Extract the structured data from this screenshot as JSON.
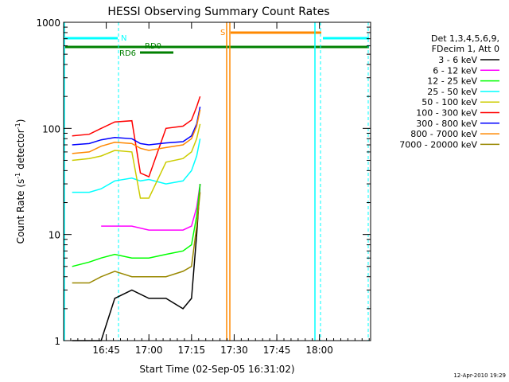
{
  "chart_data": {
    "type": "line",
    "title": "HESSI Observing Summary Count Rates",
    "xlabel": "Start Time (02-Sep-05 16:31:02)",
    "ylabel_main": "Count Rate (s",
    "ylabel_sup1": "-1",
    "ylabel_mid": " detector",
    "ylabel_sup2": "-1",
    "ylabel_end": ")",
    "yscale": "log",
    "ylim": [
      1,
      1000
    ],
    "xlim_minutes": [
      16.5,
      18.3
    ],
    "x_ticks": [
      {
        "label": "16:45",
        "value": 16.75
      },
      {
        "label": "17:00",
        "value": 17.0
      },
      {
        "label": "17:15",
        "value": 17.25
      },
      {
        "label": "17:30",
        "value": 17.5
      },
      {
        "label": "17:45",
        "value": 17.75
      },
      {
        "label": "18:00",
        "value": 18.0
      }
    ],
    "y_ticks": [
      {
        "label": "1",
        "value": 1
      },
      {
        "label": "10",
        "value": 10
      },
      {
        "label": "100",
        "value": 100
      },
      {
        "label": "1000",
        "value": 1000
      }
    ],
    "legend": {
      "placement": "right",
      "header": [
        "Det 1,3,4,5,6,9,",
        "FDecim 1, Att 0"
      ],
      "entries": [
        {
          "label": "3 - 6 keV",
          "color": "#000000"
        },
        {
          "label": "6 - 12 keV",
          "color": "#ff00ff"
        },
        {
          "label": "12 - 25 keV",
          "color": "#00ff00"
        },
        {
          "label": "25 - 50 keV",
          "color": "#00ffff"
        },
        {
          "label": "50 - 100 keV",
          "color": "#cccc00"
        },
        {
          "label": "100 - 300 keV",
          "color": "#ff0000"
        },
        {
          "label": "300 - 800 keV",
          "color": "#0000ff"
        },
        {
          "label": "800 - 7000 keV",
          "color": "#ff8800"
        },
        {
          "label": "7000 - 20000 keV",
          "color": "#998800"
        }
      ]
    },
    "flags": [
      {
        "label": "N",
        "color": "#00ffff"
      },
      {
        "label": "RD0",
        "color": "#008000"
      },
      {
        "label": "RD6",
        "color": "#008000"
      },
      {
        "label": "S",
        "color": "#ff8800"
      }
    ],
    "series": [
      {
        "name": "3 - 6 keV",
        "x": [
          16.55,
          16.65,
          16.72,
          16.8,
          16.9,
          17.0,
          17.1,
          17.2,
          17.25,
          17.28,
          17.3
        ],
        "y": [
          1,
          1,
          1,
          2.5,
          3,
          2.5,
          2.5,
          2,
          2.5,
          10,
          30
        ]
      },
      {
        "name": "6 - 12 keV",
        "x": [
          16.72,
          16.8,
          16.9,
          17.0,
          17.1,
          17.2,
          17.25,
          17.28,
          17.3
        ],
        "y": [
          12,
          12,
          12,
          11,
          11,
          11,
          12,
          18,
          30
        ]
      },
      {
        "name": "12 - 25 keV",
        "x": [
          16.55,
          16.65,
          16.72,
          16.8,
          16.9,
          17.0,
          17.1,
          17.2,
          17.25,
          17.28,
          17.3
        ],
        "y": [
          5,
          5.5,
          6,
          6.5,
          6,
          6,
          6.5,
          7,
          8,
          15,
          30
        ]
      },
      {
        "name": "25 - 50 keV",
        "x": [
          16.55,
          16.65,
          16.72,
          16.8,
          16.9,
          16.95,
          17.0,
          17.1,
          17.2,
          17.25,
          17.28,
          17.3
        ],
        "y": [
          25,
          25,
          27,
          32,
          34,
          32,
          33,
          30,
          32,
          40,
          55,
          80
        ]
      },
      {
        "name": "50 - 100 keV",
        "x": [
          16.55,
          16.65,
          16.72,
          16.8,
          16.9,
          16.95,
          17.0,
          17.1,
          17.2,
          17.25,
          17.28,
          17.3
        ],
        "y": [
          50,
          52,
          55,
          62,
          60,
          22,
          22,
          48,
          52,
          60,
          80,
          110
        ]
      },
      {
        "name": "100 - 300 keV",
        "x": [
          16.55,
          16.65,
          16.72,
          16.8,
          16.9,
          16.95,
          17.0,
          17.1,
          17.2,
          17.25,
          17.28,
          17.3
        ],
        "y": [
          85,
          88,
          100,
          115,
          118,
          38,
          35,
          100,
          105,
          120,
          160,
          200
        ]
      },
      {
        "name": "300 - 800 keV",
        "x": [
          16.55,
          16.65,
          16.72,
          16.8,
          16.9,
          16.95,
          17.0,
          17.1,
          17.2,
          17.25,
          17.28,
          17.3
        ],
        "y": [
          70,
          72,
          78,
          82,
          80,
          72,
          70,
          73,
          75,
          85,
          110,
          160
        ]
      },
      {
        "name": "800 - 7000 keV",
        "x": [
          16.55,
          16.65,
          16.72,
          16.8,
          16.9,
          16.95,
          17.0,
          17.1,
          17.2,
          17.25,
          17.28,
          17.3
        ],
        "y": [
          58,
          60,
          68,
          74,
          72,
          65,
          62,
          66,
          70,
          80,
          105,
          150
        ]
      },
      {
        "name": "7000 - 20000 keV",
        "x": [
          16.55,
          16.65,
          16.72,
          16.8,
          16.9,
          17.0,
          17.1,
          17.2,
          17.25,
          17.28,
          17.3
        ],
        "y": [
          3.5,
          3.5,
          4,
          4.5,
          4,
          4,
          4,
          4.5,
          5,
          12,
          25
        ]
      }
    ]
  },
  "footer": {
    "timestamp": "12-Apr-2010 19:29"
  }
}
